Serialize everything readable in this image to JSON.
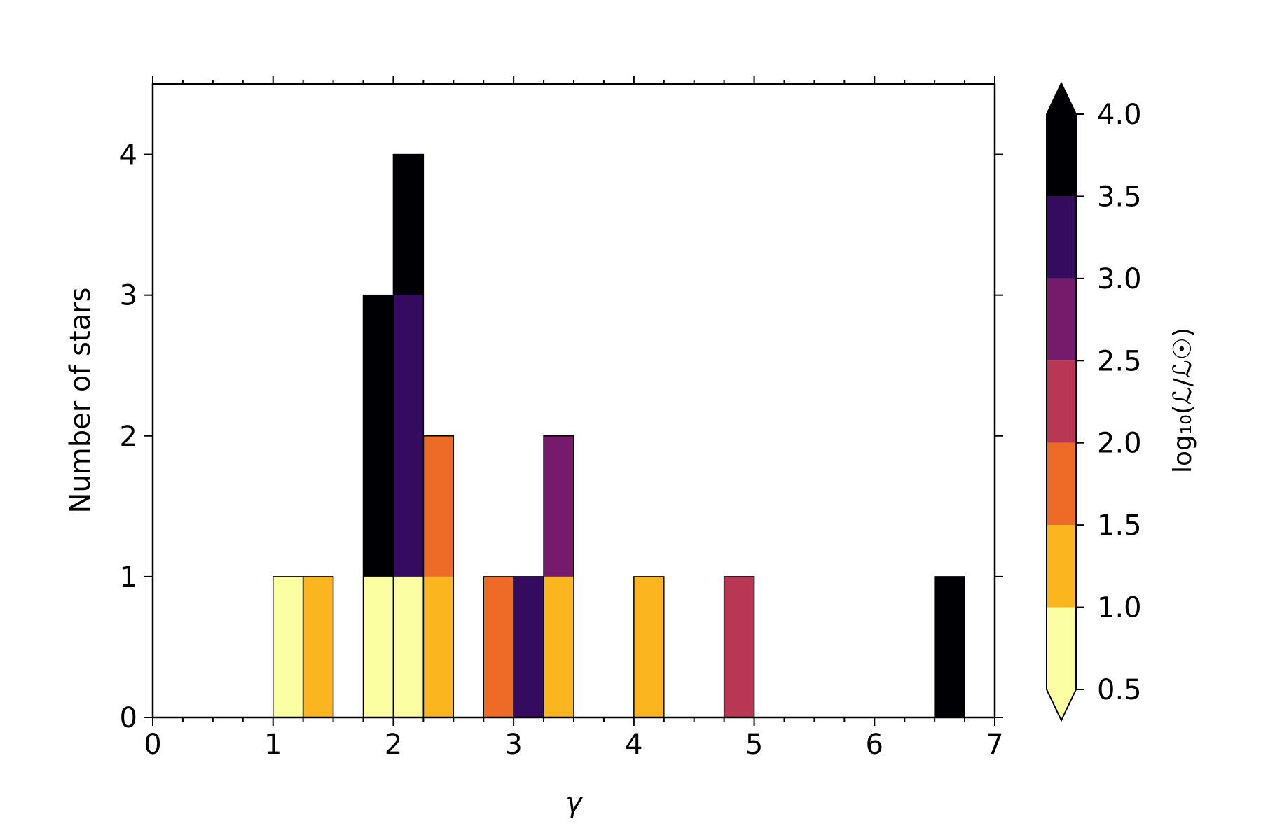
{
  "chart_data": {
    "type": "bar",
    "variant": "stacked-histogram",
    "xlabel": "γ",
    "ylabel": "Number of stars",
    "xlim": [
      0,
      7
    ],
    "ylim": [
      0,
      4.5
    ],
    "bin_width": 0.25,
    "xticks": [
      "0",
      "1",
      "2",
      "3",
      "4",
      "5",
      "6",
      "7"
    ],
    "yticks": [
      "0",
      "1",
      "2",
      "3",
      "4"
    ],
    "bars": [
      {
        "x": 1.0,
        "bottom": 0,
        "height": 1,
        "level": 0.75
      },
      {
        "x": 1.25,
        "bottom": 0,
        "height": 1,
        "level": 1.25
      },
      {
        "x": 1.75,
        "bottom": 0,
        "height": 1,
        "level": 0.75
      },
      {
        "x": 1.75,
        "bottom": 1,
        "height": 2,
        "level": 3.75
      },
      {
        "x": 2.0,
        "bottom": 0,
        "height": 1,
        "level": 0.75
      },
      {
        "x": 2.0,
        "bottom": 1,
        "height": 2,
        "level": 3.25
      },
      {
        "x": 2.0,
        "bottom": 3,
        "height": 1,
        "level": 3.75
      },
      {
        "x": 2.25,
        "bottom": 0,
        "height": 1,
        "level": 1.25
      },
      {
        "x": 2.25,
        "bottom": 1,
        "height": 1,
        "level": 1.75
      },
      {
        "x": 2.75,
        "bottom": 0,
        "height": 1,
        "level": 1.75
      },
      {
        "x": 3.0,
        "bottom": 0,
        "height": 1,
        "level": 3.25
      },
      {
        "x": 3.25,
        "bottom": 0,
        "height": 1,
        "level": 1.25
      },
      {
        "x": 3.25,
        "bottom": 1,
        "height": 1,
        "level": 2.75
      },
      {
        "x": 4.0,
        "bottom": 0,
        "height": 1,
        "level": 1.25
      },
      {
        "x": 4.75,
        "bottom": 0,
        "height": 1,
        "level": 2.25
      },
      {
        "x": 6.5,
        "bottom": 0,
        "height": 1,
        "level": 3.75
      }
    ],
    "colorbar": {
      "label": "log₁₀(ℒ/ℒ☉)",
      "ticks": [
        "0.5",
        "1.0",
        "1.5",
        "2.0",
        "2.5",
        "3.0",
        "3.5",
        "4.0"
      ],
      "range": [
        0.5,
        4.0
      ],
      "extend": "both",
      "segments": [
        {
          "from": 0.5,
          "to": 1.0,
          "color": "#fcfea4"
        },
        {
          "from": 1.0,
          "to": 1.5,
          "color": "#fab51f"
        },
        {
          "from": 1.5,
          "to": 2.0,
          "color": "#ee6a27"
        },
        {
          "from": 2.0,
          "to": 2.5,
          "color": "#b93755"
        },
        {
          "from": 2.5,
          "to": 3.0,
          "color": "#761b6b"
        },
        {
          "from": 3.0,
          "to": 3.5,
          "color": "#340b5e"
        },
        {
          "from": 3.5,
          "to": 4.0,
          "color": "#000004"
        }
      ],
      "under_color": "#fcfea4",
      "over_color": "#000004"
    }
  }
}
